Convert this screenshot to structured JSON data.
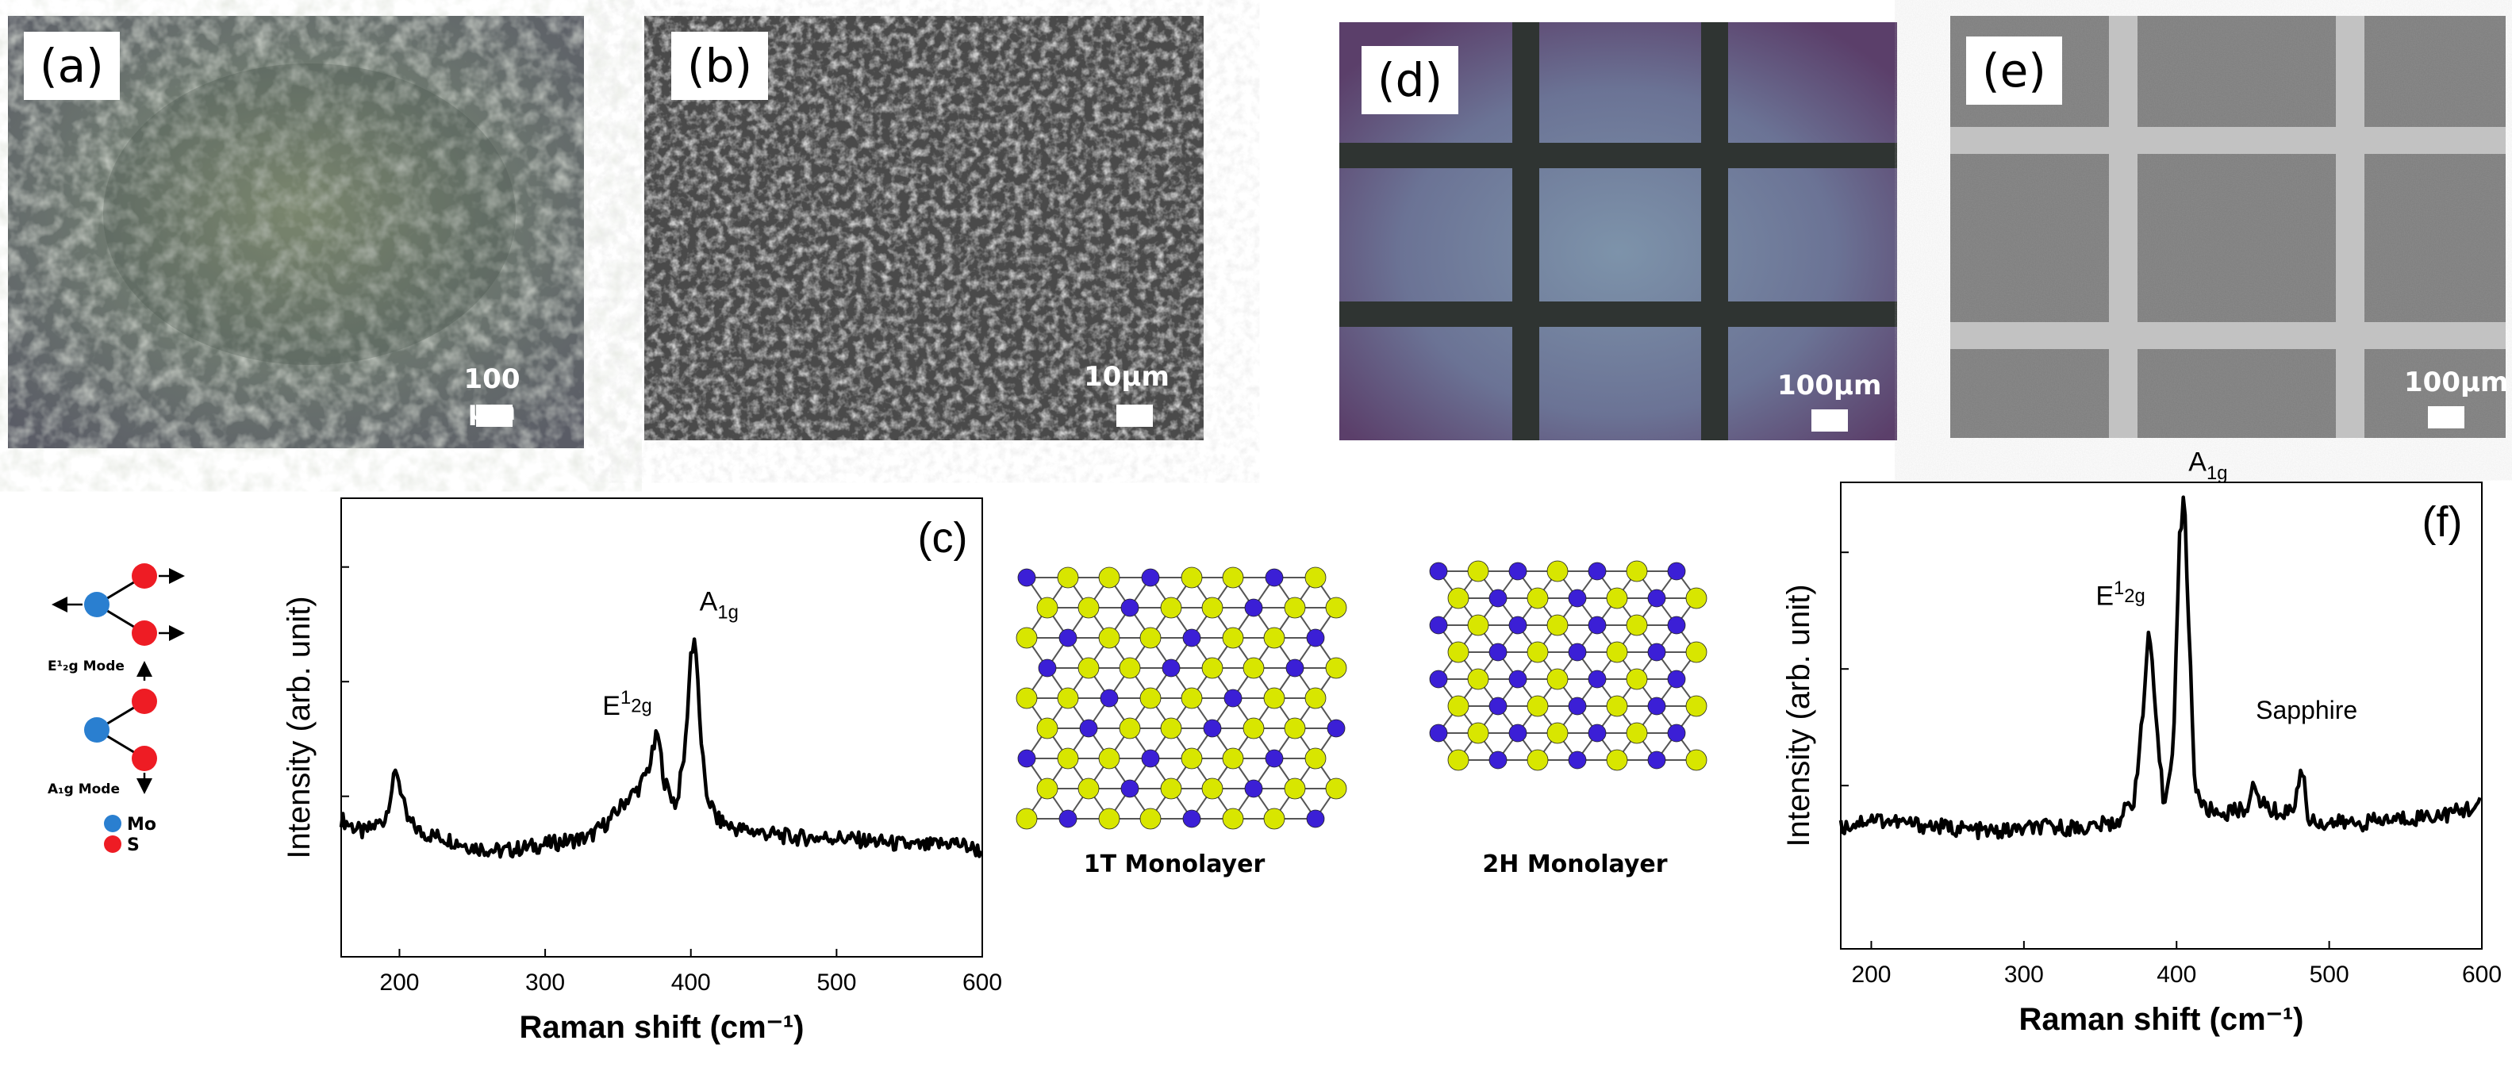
{
  "panels": {
    "a": {
      "label": "(a)",
      "scale": "100 μm"
    },
    "b": {
      "label": "(b)",
      "scale": "10μm"
    },
    "d": {
      "label": "(d)",
      "scale": "100μm"
    },
    "e": {
      "label": "(e)",
      "scale": "100μm"
    }
  },
  "modes": {
    "e2g_label": "E¹₂g Mode",
    "a1g_label": "A₁g Mode",
    "legend_mo": "Mo",
    "legend_s": "S"
  },
  "structures": {
    "t1_label": "1T Monolayer",
    "h2_label": "2H Monolayer"
  },
  "colors": {
    "mo": "#2a7fd0",
    "s": "#ee1c24",
    "lattice_s": "#d8e600",
    "lattice_mo": "#3b1fd6"
  },
  "chart_data": [
    {
      "type": "line",
      "panel_label": "(c)",
      "xlabel": "Raman shift (cm⁻¹)",
      "ylabel": "Intensity (arb. unit)",
      "xlim": [
        160,
        600
      ],
      "ylim": [
        0,
        1
      ],
      "xticks": [
        "200",
        "300",
        "400",
        "500",
        "600"
      ],
      "xtick_values": [
        200,
        300,
        400,
        500,
        600
      ],
      "peak_labels": [
        {
          "text": "E¹₂g",
          "x": 377
        },
        {
          "text": "A₁g",
          "x": 403
        }
      ],
      "series": [
        {
          "x": [
            160,
            175,
            190,
            198,
            205,
            215,
            230,
            250,
            270,
            290,
            310,
            330,
            345,
            355,
            365,
            372,
            377,
            382,
            390,
            396,
            400,
            403,
            406,
            410,
            418,
            430,
            450,
            470,
            500,
            530,
            560,
            580,
            600
          ],
          "y": [
            0.3,
            0.27,
            0.3,
            0.41,
            0.3,
            0.27,
            0.26,
            0.24,
            0.23,
            0.24,
            0.25,
            0.26,
            0.3,
            0.34,
            0.37,
            0.42,
            0.49,
            0.38,
            0.33,
            0.45,
            0.66,
            0.7,
            0.52,
            0.36,
            0.3,
            0.28,
            0.27,
            0.26,
            0.26,
            0.25,
            0.24,
            0.25,
            0.23
          ]
        }
      ]
    },
    {
      "type": "line",
      "panel_label": "(f)",
      "xlabel": "Raman shift (cm⁻¹)",
      "ylabel": "Intensity (arb. unit)",
      "xlim": [
        180,
        600
      ],
      "ylim": [
        0,
        1
      ],
      "xticks": [
        "200",
        "300",
        "400",
        "500",
        "600"
      ],
      "xtick_values": [
        200,
        300,
        400,
        500,
        600
      ],
      "peak_labels": [
        {
          "text": "E¹₂g",
          "x": 383
        },
        {
          "text": "A₁g",
          "x": 405
        },
        {
          "text": "Sapphire",
          "x": 480
        }
      ],
      "series": [
        {
          "x": [
            180,
            200,
            220,
            250,
            280,
            310,
            340,
            360,
            372,
            378,
            382,
            386,
            392,
            398,
            402,
            405,
            408,
            412,
            418,
            430,
            445,
            450,
            460,
            470,
            478,
            482,
            486,
            495,
            520,
            550,
            580,
            600
          ],
          "y": [
            0.26,
            0.28,
            0.27,
            0.26,
            0.25,
            0.26,
            0.26,
            0.27,
            0.32,
            0.5,
            0.7,
            0.5,
            0.3,
            0.45,
            0.88,
            0.97,
            0.7,
            0.35,
            0.3,
            0.29,
            0.3,
            0.34,
            0.3,
            0.29,
            0.31,
            0.4,
            0.28,
            0.27,
            0.27,
            0.28,
            0.29,
            0.31
          ]
        }
      ]
    }
  ]
}
